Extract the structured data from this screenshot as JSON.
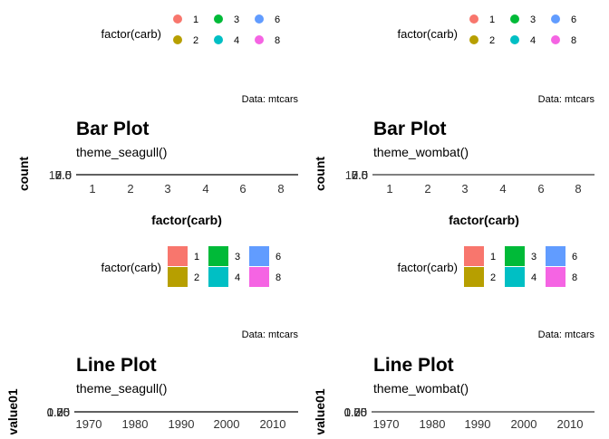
{
  "chart_data": [
    {
      "type": "bar",
      "title": "Bar Plot",
      "subtitle": "theme_seagull()",
      "caption": "Data: mtcars",
      "xlabel": "factor(carb)",
      "ylabel": "count",
      "categories": [
        "1",
        "2",
        "3",
        "4",
        "6",
        "8"
      ],
      "y_ticks": [
        "0.0",
        "2.5",
        "5.0",
        "7.5",
        "10.0"
      ],
      "legend": {
        "title": "factor(carb)",
        "placement": "top",
        "key": "point",
        "entries": [
          "1",
          "3",
          "6",
          "2",
          "4",
          "8"
        ]
      },
      "grid": false
    },
    {
      "type": "bar",
      "title": "Bar Plot",
      "subtitle": "theme_wombat()",
      "caption": "Data: mtcars",
      "xlabel": "factor(carb)",
      "ylabel": "count",
      "categories": [
        "1",
        "2",
        "3",
        "4",
        "6",
        "8"
      ],
      "y_ticks": [
        "0.0",
        "2.5",
        "5.0",
        "7.5",
        "10.0"
      ],
      "legend": {
        "title": "factor(carb)",
        "placement": "top",
        "key": "point",
        "entries": [
          "1",
          "3",
          "6",
          "2",
          "4",
          "8"
        ]
      },
      "grid": false
    },
    {
      "type": "line",
      "title": "Line Plot",
      "subtitle": "theme_seagull()",
      "caption": "Data: mtcars",
      "xlabel": "",
      "ylabel": "value01",
      "x_ticks": [
        "1970",
        "1980",
        "1990",
        "2000",
        "2010"
      ],
      "y_ticks": [
        "0.00",
        "0.25",
        "0.50",
        "0.75",
        "1.00"
      ],
      "legend": {
        "title": "factor(carb)",
        "placement": "top",
        "key": "square",
        "entries": [
          "1",
          "3",
          "6",
          "2",
          "4",
          "8"
        ]
      },
      "grid": false
    },
    {
      "type": "line",
      "title": "Line Plot",
      "subtitle": "theme_wombat()",
      "caption": "Data: mtcars",
      "xlabel": "",
      "ylabel": "value01",
      "x_ticks": [
        "1970",
        "1980",
        "1990",
        "2000",
        "2010"
      ],
      "y_ticks": [
        "0.00",
        "0.25",
        "0.50",
        "0.75",
        "1.00"
      ],
      "legend": {
        "title": "factor(carb)",
        "placement": "top",
        "key": "square",
        "entries": [
          "1",
          "3",
          "6",
          "2",
          "4",
          "8"
        ]
      },
      "grid": false
    }
  ],
  "colors": {
    "1": "#F8766D",
    "2": "#B79F00",
    "3": "#00BA38",
    "4": "#00BFC4",
    "6": "#619CFF",
    "8": "#F564E3",
    "axis": "#000000",
    "text": "#000000",
    "tick_text": "#333333"
  }
}
